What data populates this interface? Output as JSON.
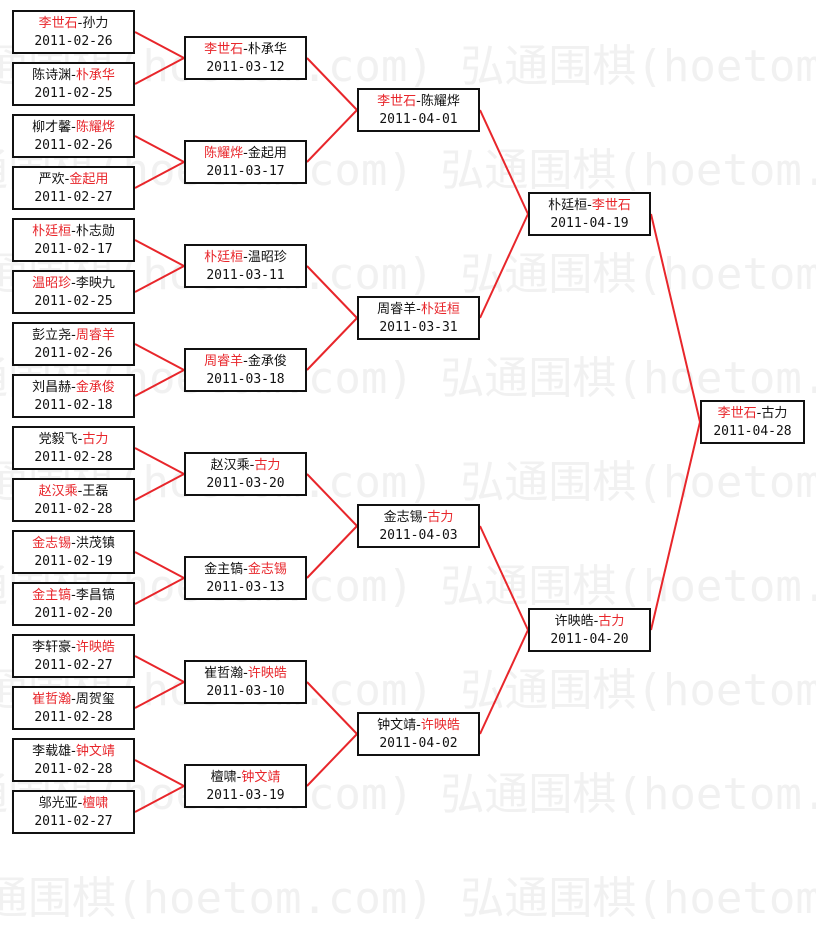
{
  "watermark": "弘通围棋(hoetom.com)",
  "line_color": "#e8262b",
  "winner_color": "#e8262b",
  "rounds": [
    [
      {
        "p1": "李世石",
        "p2": "孙力",
        "winner": 1,
        "date": "2011-02-26"
      },
      {
        "p1": "陈诗渊",
        "p2": "朴承华",
        "winner": 2,
        "date": "2011-02-25"
      },
      {
        "p1": "柳才馨",
        "p2": "陈耀烨",
        "winner": 2,
        "date": "2011-02-26"
      },
      {
        "p1": "严欢",
        "p2": "金起用",
        "winner": 2,
        "date": "2011-02-27"
      },
      {
        "p1": "朴廷桓",
        "p2": "朴志勋",
        "winner": 1,
        "date": "2011-02-17"
      },
      {
        "p1": "温昭珍",
        "p2": "李映九",
        "winner": 1,
        "date": "2011-02-25"
      },
      {
        "p1": "彭立尧",
        "p2": "周睿羊",
        "winner": 2,
        "date": "2011-02-26"
      },
      {
        "p1": "刘昌赫",
        "p2": "金承俊",
        "winner": 2,
        "date": "2011-02-18"
      },
      {
        "p1": "党毅飞",
        "p2": "古力",
        "winner": 2,
        "date": "2011-02-28"
      },
      {
        "p1": "赵汉乘",
        "p2": "王磊",
        "winner": 1,
        "date": "2011-02-28"
      },
      {
        "p1": "金志锡",
        "p2": "洪茂镇",
        "winner": 1,
        "date": "2011-02-19"
      },
      {
        "p1": "金主镐",
        "p2": "李昌镐",
        "winner": 1,
        "date": "2011-02-20"
      },
      {
        "p1": "李轩豪",
        "p2": "许映皓",
        "winner": 2,
        "date": "2011-02-27"
      },
      {
        "p1": "崔哲瀚",
        "p2": "周贺玺",
        "winner": 1,
        "date": "2011-02-28"
      },
      {
        "p1": "李载雄",
        "p2": "钟文靖",
        "winner": 2,
        "date": "2011-02-28"
      },
      {
        "p1": "邬光亚",
        "p2": "檀啸",
        "winner": 2,
        "date": "2011-02-27"
      }
    ],
    [
      {
        "p1": "李世石",
        "p2": "朴承华",
        "winner": 1,
        "date": "2011-03-12"
      },
      {
        "p1": "陈耀烨",
        "p2": "金起用",
        "winner": 1,
        "date": "2011-03-17"
      },
      {
        "p1": "朴廷桓",
        "p2": "温昭珍",
        "winner": 1,
        "date": "2011-03-11"
      },
      {
        "p1": "周睿羊",
        "p2": "金承俊",
        "winner": 1,
        "date": "2011-03-18"
      },
      {
        "p1": "赵汉乘",
        "p2": "古力",
        "winner": 2,
        "date": "2011-03-20"
      },
      {
        "p1": "金主镐",
        "p2": "金志锡",
        "winner": 2,
        "date": "2011-03-13"
      },
      {
        "p1": "崔哲瀚",
        "p2": "许映皓",
        "winner": 2,
        "date": "2011-03-10"
      },
      {
        "p1": "檀啸",
        "p2": "钟文靖",
        "winner": 2,
        "date": "2011-03-19"
      }
    ],
    [
      {
        "p1": "李世石",
        "p2": "陈耀烨",
        "winner": 1,
        "date": "2011-04-01"
      },
      {
        "p1": "周睿羊",
        "p2": "朴廷桓",
        "winner": 2,
        "date": "2011-03-31"
      },
      {
        "p1": "金志锡",
        "p2": "古力",
        "winner": 2,
        "date": "2011-04-03"
      },
      {
        "p1": "钟文靖",
        "p2": "许映皓",
        "winner": 2,
        "date": "2011-04-02"
      }
    ],
    [
      {
        "p1": "朴廷桓",
        "p2": "李世石",
        "winner": 2,
        "date": "2011-04-19"
      },
      {
        "p1": "许映皓",
        "p2": "古力",
        "winner": 2,
        "date": "2011-04-20"
      }
    ],
    [
      {
        "p1": "李世石",
        "p2": "古力",
        "winner": 1,
        "date": "2011-04-28"
      }
    ]
  ]
}
